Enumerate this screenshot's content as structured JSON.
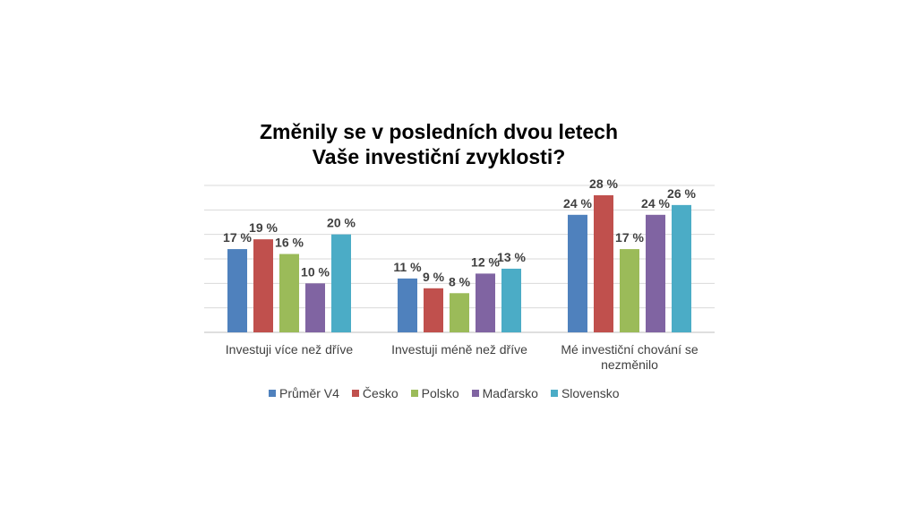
{
  "chart_data": {
    "type": "bar",
    "title_lines": [
      "Změnily se v posledních dvou letech",
      "Vaše investiční zvyklosti?"
    ],
    "categories": [
      [
        "Investuji více než dříve"
      ],
      [
        "Investuji méně než dříve"
      ],
      [
        "Mé investiční chování se",
        "nezměnilo"
      ]
    ],
    "series": [
      {
        "name": "Průměr V4",
        "color": "#4f81bd",
        "values": [
          17,
          11,
          24
        ],
        "labels": [
          "17 %",
          "11 %",
          "24 %"
        ]
      },
      {
        "name": "Česko",
        "color": "#c0504d",
        "values": [
          19,
          9,
          28
        ],
        "labels": [
          "19 %",
          "9 %",
          "28 %"
        ]
      },
      {
        "name": "Polsko",
        "color": "#9bbb59",
        "values": [
          16,
          8,
          17
        ],
        "labels": [
          "16 %",
          "8 %",
          "17 %"
        ]
      },
      {
        "name": "Maďarsko",
        "color": "#8064a2",
        "values": [
          10,
          12,
          24
        ],
        "labels": [
          "10 %",
          "12 %",
          "24 %"
        ]
      },
      {
        "name": "Slovensko",
        "color": "#4bacc6",
        "values": [
          20,
          13,
          26
        ],
        "labels": [
          "20 %",
          "13 %",
          "26 %"
        ]
      }
    ],
    "ylim": [
      0,
      30
    ],
    "grid": true,
    "legend_position": "bottom"
  }
}
